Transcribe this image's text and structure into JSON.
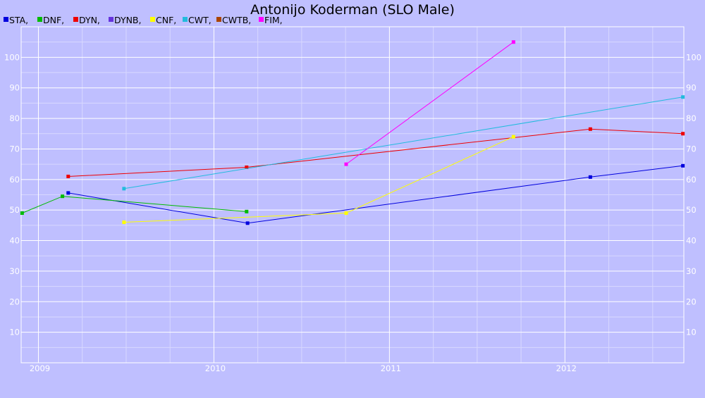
{
  "chart_data": {
    "type": "line",
    "title": "Antonijo Koderman (SLO Male)",
    "xlabel": "",
    "ylabel": "",
    "xlim": [
      "2008-11-26",
      "2012-09-05"
    ],
    "ylim": [
      0,
      110
    ],
    "x_ticks": [
      "2009",
      "2010",
      "2011",
      "2012"
    ],
    "y_ticks": [
      10,
      20,
      30,
      40,
      50,
      60,
      70,
      80,
      90,
      100
    ],
    "grid": true,
    "legend_position": "top-left",
    "series": [
      {
        "name": "STA",
        "legend_label": "STA,",
        "color": "#0000dd",
        "points": [
          {
            "x": "2009-03-04",
            "y": 55.6
          },
          {
            "x": "2010-03-12",
            "y": 45.7
          },
          {
            "x": "2012-02-23",
            "y": 60.8
          },
          {
            "x": "2012-09-03",
            "y": 64.5
          }
        ]
      },
      {
        "name": "DNF",
        "legend_label": "DNF,",
        "color": "#00bb00",
        "points": [
          {
            "x": "2008-11-28",
            "y": 49.0
          },
          {
            "x": "2009-02-20",
            "y": 54.5
          },
          {
            "x": "2010-03-10",
            "y": 49.5
          }
        ]
      },
      {
        "name": "DYN",
        "legend_label": "DYN,",
        "color": "#ee0000",
        "points": [
          {
            "x": "2009-03-04",
            "y": 61.0
          },
          {
            "x": "2010-03-10",
            "y": 64.0
          },
          {
            "x": "2012-02-23",
            "y": 76.5
          },
          {
            "x": "2012-09-03",
            "y": 75.0
          }
        ]
      },
      {
        "name": "DYNB",
        "legend_label": "DYNB,",
        "color": "#6633dd",
        "points": []
      },
      {
        "name": "CNF",
        "legend_label": "CNF,",
        "color": "#ffff00",
        "points": [
          {
            "x": "2009-06-28",
            "y": 46.0
          },
          {
            "x": "2010-10-03",
            "y": 49.0
          },
          {
            "x": "2011-09-16",
            "y": 74.0
          }
        ]
      },
      {
        "name": "CWT",
        "legend_label": "CWT,",
        "color": "#22bbdd",
        "points": [
          {
            "x": "2009-06-28",
            "y": 57.0
          },
          {
            "x": "2012-09-03",
            "y": 87.0
          }
        ]
      },
      {
        "name": "CWTB",
        "legend_label": "CWTB,",
        "color": "#aa4400",
        "points": []
      },
      {
        "name": "FIM",
        "legend_label": "FIM,",
        "color": "#ff00ff",
        "points": [
          {
            "x": "2010-10-03",
            "y": 65.0
          },
          {
            "x": "2011-09-16",
            "y": 105.0
          }
        ]
      }
    ],
    "colors": {
      "background": "#bfbfff",
      "grid_major": "#ffffff",
      "grid_minor": "#d8d8ff",
      "tick_text": "#ffffff"
    }
  }
}
